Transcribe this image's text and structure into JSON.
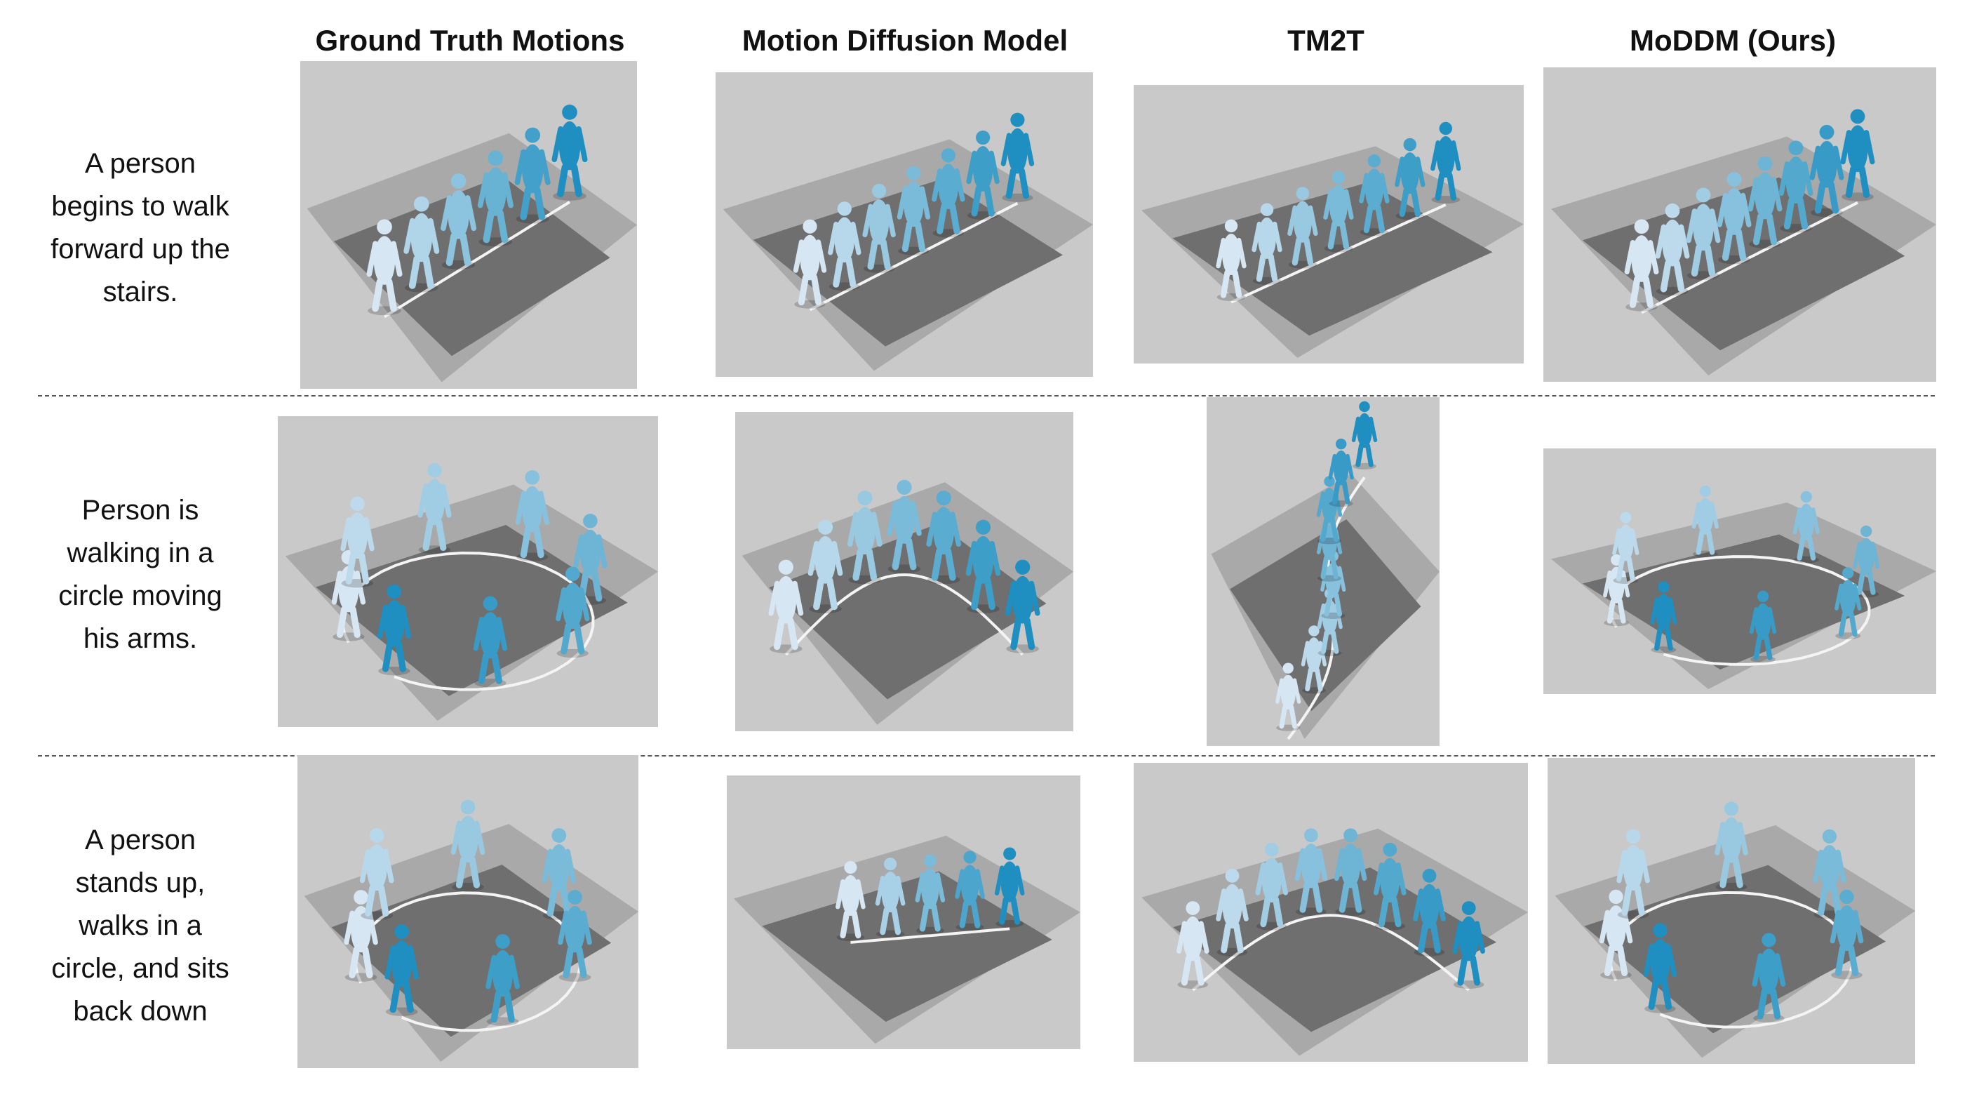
{
  "figure": {
    "columns": [
      {
        "id": "gt",
        "label": "Ground Truth Motions"
      },
      {
        "id": "mdm",
        "label": "Motion Diffusion Model"
      },
      {
        "id": "tm2t",
        "label": "TM2T"
      },
      {
        "id": "moddm",
        "label": "MoDDM (Ours)"
      }
    ],
    "rows": [
      {
        "caption": "A person\nbegins to walk\nforward up the\nstairs."
      },
      {
        "caption": "Person is\nwalking in a\ncircle moving\nhis arms."
      },
      {
        "caption": "A person\nstands up,\nwalks in a\ncircle, and sits\nback down"
      }
    ],
    "colors": {
      "background": "#c9c9c9",
      "floor_light": "#a9a9a9",
      "floor_dark": "#6f6f6f",
      "trajectory": "#f4f4f4",
      "figure_start": "#d6e6f2",
      "figure_end": "#1e8fc0"
    }
  }
}
